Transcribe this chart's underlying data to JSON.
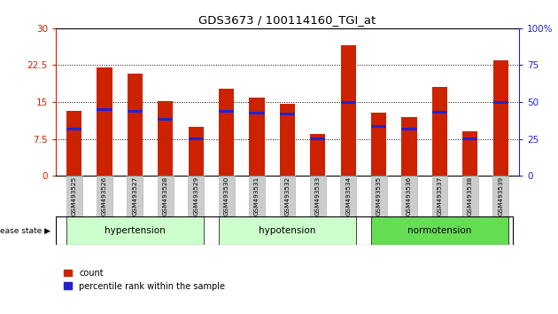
{
  "title": "GDS3673 / 100114160_TGI_at",
  "samples": [
    "GSM493525",
    "GSM493526",
    "GSM493527",
    "GSM493528",
    "GSM493529",
    "GSM493530",
    "GSM493531",
    "GSM493532",
    "GSM493533",
    "GSM493534",
    "GSM493535",
    "GSM493536",
    "GSM493537",
    "GSM493538",
    "GSM493539"
  ],
  "count_values": [
    13.2,
    22.0,
    20.8,
    15.2,
    10.0,
    17.8,
    16.0,
    14.6,
    8.5,
    26.5,
    12.8,
    12.0,
    18.0,
    9.0,
    23.5
  ],
  "percentile_values": [
    9.5,
    13.5,
    13.2,
    11.5,
    7.5,
    13.2,
    12.8,
    12.5,
    7.5,
    15.0,
    10.0,
    9.5,
    13.0,
    7.5,
    15.0
  ],
  "groups": [
    {
      "label": "hypertension",
      "start": 0,
      "end": 4
    },
    {
      "label": "hypotension",
      "start": 5,
      "end": 9
    },
    {
      "label": "normotension",
      "start": 10,
      "end": 14
    }
  ],
  "group_colors": [
    "#ccffcc",
    "#ccffcc",
    "#66dd55"
  ],
  "bar_color": "#cc2200",
  "percentile_color": "#2222cc",
  "ylim_left": [
    0,
    30
  ],
  "yticks_left": [
    0,
    7.5,
    15,
    22.5,
    30
  ],
  "ytick_labels_left": [
    "0",
    "7.5",
    "15",
    "22.5",
    "30"
  ],
  "ylim_right": [
    0,
    100
  ],
  "yticks_right": [
    0,
    25,
    50,
    75,
    100
  ],
  "ytick_labels_right": [
    "0",
    "25",
    "50",
    "75",
    "100%"
  ],
  "tick_label_bg": "#cccccc",
  "bar_width": 0.5
}
